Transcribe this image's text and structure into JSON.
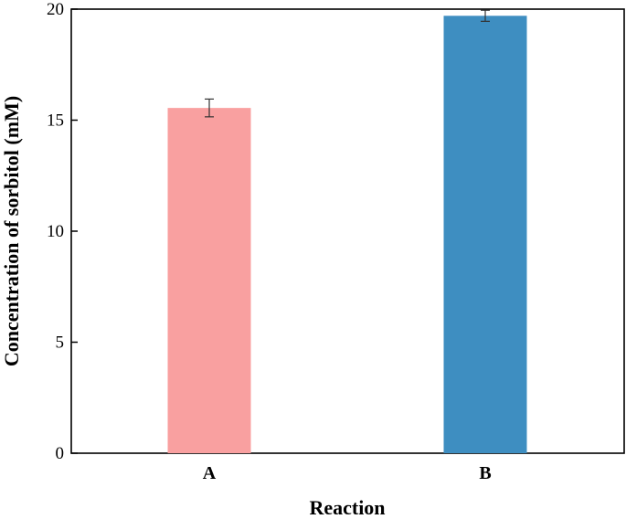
{
  "chart_data": {
    "type": "bar",
    "title": "",
    "xlabel": "Reaction",
    "ylabel": "Concentration of sorbitol (mM)",
    "categories": [
      "A",
      "B"
    ],
    "values": [
      15.55,
      19.7
    ],
    "errors": [
      0.4,
      0.25
    ],
    "colors": [
      "#F9A0A0",
      "#3E8EC1"
    ],
    "ylim": [
      0,
      20
    ],
    "yticks": [
      0,
      5,
      10,
      15,
      20
    ],
    "grid": false,
    "legend": "none"
  }
}
